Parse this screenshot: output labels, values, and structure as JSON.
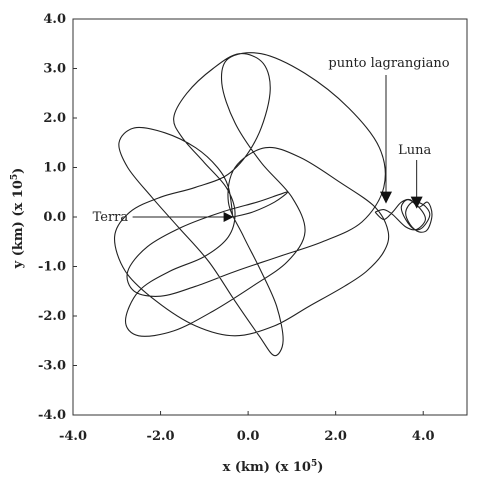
{
  "chart_data": {
    "type": "line",
    "title": "",
    "xlabel_main": "x (km) (x 10",
    "xlabel_exp": "5",
    "xlabel_end": ")",
    "ylabel_main": "y (km) (x 10",
    "ylabel_exp": "5",
    "ylabel_end": ")",
    "xlim": [
      -4.0,
      5.0
    ],
    "ylim": [
      -4.0,
      4.0
    ],
    "x_ticks": [
      "-4.0",
      "-2.0",
      "0.0",
      "2.0",
      "4.0"
    ],
    "y_ticks": [
      "4.0",
      "3.0",
      "2.0",
      "1.0",
      "0.0",
      "-1.0",
      "-2.0",
      "-3.0",
      "-4.0"
    ],
    "grid": false,
    "series": [
      {
        "x": [
          -0.35,
          -0.45,
          -0.7,
          -1.2,
          -1.9,
          -2.6,
          -2.95,
          -2.75,
          -2.2,
          -1.6,
          -0.9,
          -0.3,
          0.25,
          0.6,
          0.8,
          0.65,
          0.3,
          -0.1,
          -0.45,
          -0.3,
          0.4,
          1.2,
          2.1,
          2.9,
          3.2,
          3.1,
          2.7,
          2.2,
          1.4,
          0.6,
          -0.3,
          -1.2,
          -2.1,
          -2.8,
          -3.05,
          -2.7,
          -2.0,
          -1.2,
          -0.4,
          0.2,
          0.5,
          0.35,
          -0.2,
          -0.8,
          -1.4,
          -1.7,
          -1.5,
          -1.0,
          -0.5,
          -0.3,
          -0.45,
          -1.0,
          -1.8,
          -2.5,
          -2.8,
          -2.5,
          -1.7,
          -0.8,
          0.1,
          0.9,
          1.3,
          1.0,
          0.3,
          -0.3,
          -0.6,
          -0.45,
          0.3,
          1.3,
          2.3,
          3.0,
          3.1,
          2.6,
          1.7,
          0.7,
          -0.3,
          -1.2,
          -2.0,
          -2.6,
          -2.75,
          -2.3,
          -1.5,
          -0.6,
          0.2,
          0.7,
          0.9,
          0.6,
          0.1,
          -0.35
        ],
        "y": [
          0.0,
          0.6,
          1.0,
          1.4,
          1.7,
          1.8,
          1.5,
          1.0,
          0.4,
          -0.2,
          -0.9,
          -1.7,
          -2.4,
          -2.8,
          -2.5,
          -1.8,
          -1.1,
          -0.4,
          0.3,
          1.0,
          1.4,
          1.2,
          0.7,
          0.2,
          -0.3,
          -0.7,
          -1.1,
          -1.4,
          -1.8,
          -2.2,
          -2.4,
          -2.2,
          -1.7,
          -1.1,
          -0.4,
          0.1,
          0.4,
          0.6,
          0.9,
          1.6,
          2.5,
          3.1,
          3.3,
          3.0,
          2.5,
          2.0,
          1.6,
          1.1,
          0.6,
          0.1,
          -0.4,
          -0.8,
          -1.1,
          -1.5,
          -2.1,
          -2.4,
          -2.3,
          -1.9,
          -1.4,
          -0.9,
          -0.3,
          0.4,
          1.1,
          1.9,
          2.7,
          3.2,
          3.3,
          2.9,
          2.2,
          1.4,
          0.6,
          -0.1,
          -0.5,
          -0.8,
          -1.1,
          -1.4,
          -1.6,
          -1.5,
          -1.1,
          -0.6,
          -0.2,
          0.1,
          0.3,
          0.45,
          0.5,
          0.3,
          0.1,
          0.0
        ]
      },
      {
        "x": [
          2.9,
          3.1,
          3.3,
          3.5,
          3.7,
          3.9,
          4.1,
          4.2,
          4.1,
          3.9,
          3.7,
          3.6,
          3.75,
          4.0,
          4.15,
          4.0,
          3.8,
          3.6,
          3.5,
          3.65,
          3.9,
          4.05,
          3.85,
          3.6,
          3.3,
          3.1,
          2.9
        ],
        "y": [
          0.1,
          -0.05,
          0.1,
          0.3,
          0.35,
          0.2,
          0.3,
          0.05,
          -0.25,
          -0.3,
          -0.15,
          0.1,
          0.3,
          0.25,
          0.05,
          -0.2,
          -0.25,
          -0.05,
          0.2,
          0.35,
          0.2,
          -0.05,
          -0.25,
          -0.2,
          0.05,
          0.15,
          0.1
        ]
      }
    ],
    "annotations": [
      {
        "label": "Terra",
        "x": -0.4,
        "y": 0.0
      },
      {
        "label": "punto lagrangiano",
        "x": 3.15,
        "y": 0.35
      },
      {
        "label": "Luna",
        "x": 3.85,
        "y": 0.25
      }
    ]
  }
}
